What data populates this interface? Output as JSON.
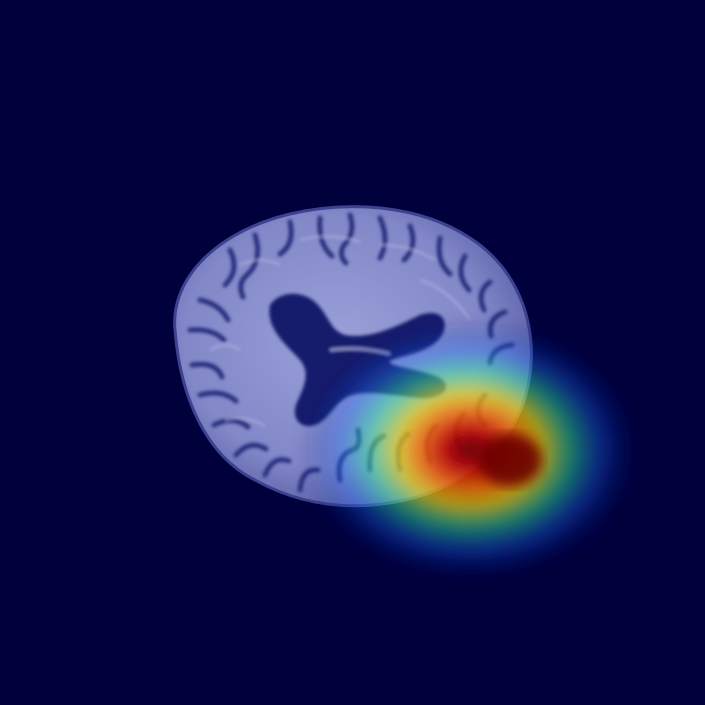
{
  "image": {
    "subject": "axial-brain-scan-with-heatmap-overlay",
    "background_color": "#00003c",
    "tissue_color": "#8e93d0",
    "sulcus_color": "#2a2f78",
    "ventricle_color": "#14186a",
    "heatmap_colors": [
      "#2dff9b",
      "#fff000",
      "#ff7a00",
      "#d00000",
      "#6a0000"
    ]
  }
}
